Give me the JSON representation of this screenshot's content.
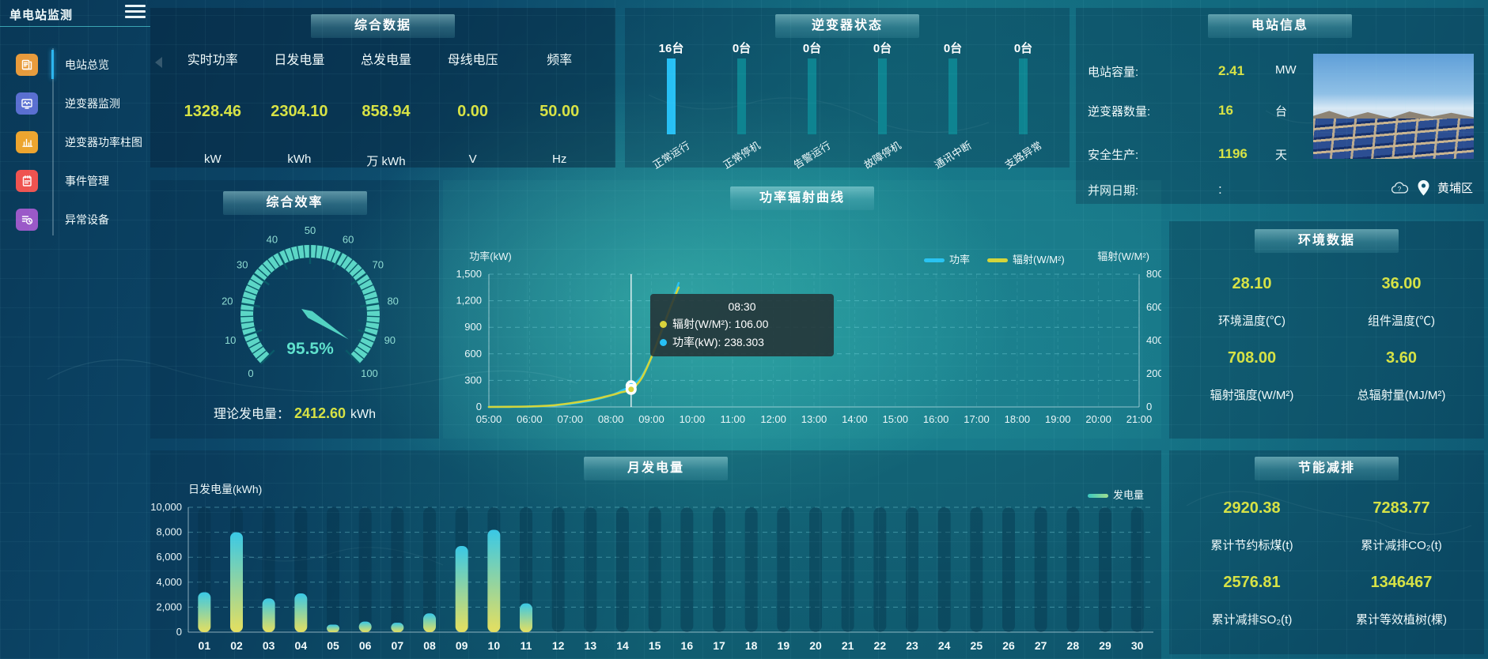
{
  "sidebar": {
    "title": "单电站监测",
    "menu": [
      {
        "label": "电站总览",
        "icon": "overview-icon",
        "color": "#e89b3c",
        "active": true
      },
      {
        "label": "逆变器监测",
        "icon": "inverter-monitor-icon",
        "color": "#5a6fd1",
        "active": false
      },
      {
        "label": "逆变器功率柱图",
        "icon": "power-bars-icon",
        "color": "#eda52f",
        "active": false
      },
      {
        "label": "事件管理",
        "icon": "event-icon",
        "color": "#ef5350",
        "active": false
      },
      {
        "label": "异常设备",
        "icon": "abnormal-device-icon",
        "color": "#9b59c8",
        "active": false
      }
    ]
  },
  "summary": {
    "title": "综合数据",
    "columns": [
      {
        "label": "实时功率",
        "value": "1328.46",
        "unit": "kW"
      },
      {
        "label": "日发电量",
        "value": "2304.10",
        "unit": "kWh"
      },
      {
        "label": "总发电量",
        "value": "858.94",
        "unit": "万 kWh"
      },
      {
        "label": "母线电压",
        "value": "0.00",
        "unit": "V"
      },
      {
        "label": "频率",
        "value": "50.00",
        "unit": "Hz"
      }
    ]
  },
  "inverter_panel": {
    "title": "逆变器状态"
  },
  "station_info": {
    "title": "电站信息",
    "rows": [
      {
        "label": "电站容量:",
        "value": "2.41",
        "unit": "MW",
        "yellow": true
      },
      {
        "label": "逆变器数量:",
        "value": "16",
        "unit": "台",
        "yellow": true
      },
      {
        "label": "安全生产:",
        "value": "1196",
        "unit": "天",
        "yellow": true
      },
      {
        "label": "并网日期:",
        "value": ":",
        "unit": "",
        "yellow": false
      }
    ],
    "location": "黄埔区"
  },
  "efficiency": {
    "title": "综合效率",
    "theory_label": "理论发电量：",
    "theory_value": "2412.60",
    "theory_unit": "kWh"
  },
  "curve_panel": {
    "title": "功率辐射曲线"
  },
  "env": {
    "title": "环境数据",
    "items": [
      {
        "value": "28.10",
        "label": "环境温度(℃)"
      },
      {
        "value": "36.00",
        "label": "组件温度(℃)"
      },
      {
        "value": "708.00",
        "label": "辐射强度(W/M²)"
      },
      {
        "value": "3.60",
        "label": "总辐射量(MJ/M²)"
      }
    ]
  },
  "monthly_panel": {
    "title": "月发电量",
    "ylabel": "日发电量(kWh)",
    "legend": "发电量"
  },
  "saving": {
    "title": "节能减排",
    "items": [
      {
        "value": "2920.38",
        "label": "累计节约标煤(t)"
      },
      {
        "value": "7283.77",
        "label": "累计减排CO₂(t)"
      },
      {
        "value": "2576.81",
        "label": "累计减排SO₂(t)"
      },
      {
        "value": "1346467",
        "label": "累计等效植树(棵)"
      }
    ]
  },
  "tooltip": {
    "time": "08:30",
    "rows": [
      {
        "label": "辐射(W/M²)",
        "value": "106.00",
        "color": "#d9d33c"
      },
      {
        "label": "功率(kW)",
        "value": "238.303",
        "color": "#27c0f5"
      }
    ]
  },
  "chart_data": {
    "inverter_status": {
      "type": "bar",
      "title": "逆变器状态",
      "categories": [
        "正常运行",
        "正常停机",
        "告警运行",
        "故障停机",
        "通讯中断",
        "支路异常"
      ],
      "values": [
        16,
        0,
        0,
        0,
        0,
        0
      ],
      "unit": "台",
      "highlight_color": "#27c0f5",
      "bar_color": "#0e8491"
    },
    "efficiency_gauge": {
      "type": "gauge",
      "title": "综合效率",
      "value": 95.5,
      "unit": "%",
      "min": 0,
      "max": 100,
      "tick_step": 10,
      "arc_color": "#5cd6c6"
    },
    "power_radiation": {
      "type": "line",
      "title": "功率辐射曲线",
      "x_ticks": [
        "05:00",
        "06:00",
        "07:00",
        "08:00",
        "09:00",
        "10:00",
        "11:00",
        "12:00",
        "13:00",
        "14:00",
        "15:00",
        "16:00",
        "17:00",
        "18:00",
        "19:00",
        "20:00",
        "21:00"
      ],
      "x_range_hours": [
        5,
        21
      ],
      "left_axis": {
        "name": "功率(kW)",
        "min": 0,
        "max": 1500,
        "step": 300
      },
      "right_axis": {
        "name": "辐射(W/M²)",
        "min": 0,
        "max": 800,
        "step": 200
      },
      "legend": [
        "功率",
        "辐射(W/M²)"
      ],
      "series": [
        {
          "name": "功率",
          "axis": "left",
          "color": "#29c3f2",
          "points": [
            [
              5,
              0
            ],
            [
              5.5,
              1
            ],
            [
              6,
              3
            ],
            [
              6.5,
              12
            ],
            [
              7,
              35
            ],
            [
              7.5,
              70
            ],
            [
              8,
              130
            ],
            [
              8.25,
              180
            ],
            [
              8.5,
              238.303
            ],
            [
              8.75,
              340
            ],
            [
              9,
              560
            ],
            [
              9.25,
              850
            ],
            [
              9.5,
              1180
            ],
            [
              9.67,
              1400
            ]
          ]
        },
        {
          "name": "辐射(W/M²)",
          "axis": "right",
          "color": "#d4d53a",
          "points": [
            [
              5,
              0
            ],
            [
              5.5,
              1
            ],
            [
              6,
              3
            ],
            [
              6.5,
              8
            ],
            [
              7,
              22
            ],
            [
              7.5,
              42
            ],
            [
              8,
              70
            ],
            [
              8.25,
              88
            ],
            [
              8.5,
              106
            ],
            [
              8.75,
              170
            ],
            [
              9,
              300
            ],
            [
              9.25,
              460
            ],
            [
              9.5,
              620
            ],
            [
              9.67,
              720
            ]
          ]
        }
      ],
      "hover": {
        "x": 8.5,
        "power": 238.303,
        "radiation": 106
      }
    },
    "monthly_energy": {
      "type": "bar",
      "title": "月发电量",
      "ylabel": "日发电量(kWh)",
      "ylim": [
        0,
        10000
      ],
      "ystep": 2000,
      "legend": "发电量",
      "categories": [
        "01",
        "02",
        "03",
        "04",
        "05",
        "06",
        "07",
        "08",
        "09",
        "10",
        "11",
        "12",
        "13",
        "14",
        "15",
        "16",
        "17",
        "18",
        "19",
        "20",
        "21",
        "22",
        "23",
        "24",
        "25",
        "26",
        "27",
        "28",
        "29",
        "30"
      ],
      "values": [
        3200,
        8000,
        2700,
        3100,
        600,
        850,
        750,
        1500,
        6900,
        8200,
        2300,
        0,
        0,
        0,
        0,
        0,
        0,
        0,
        0,
        0,
        0,
        0,
        0,
        0,
        0,
        0,
        0,
        0,
        0,
        0
      ]
    }
  }
}
